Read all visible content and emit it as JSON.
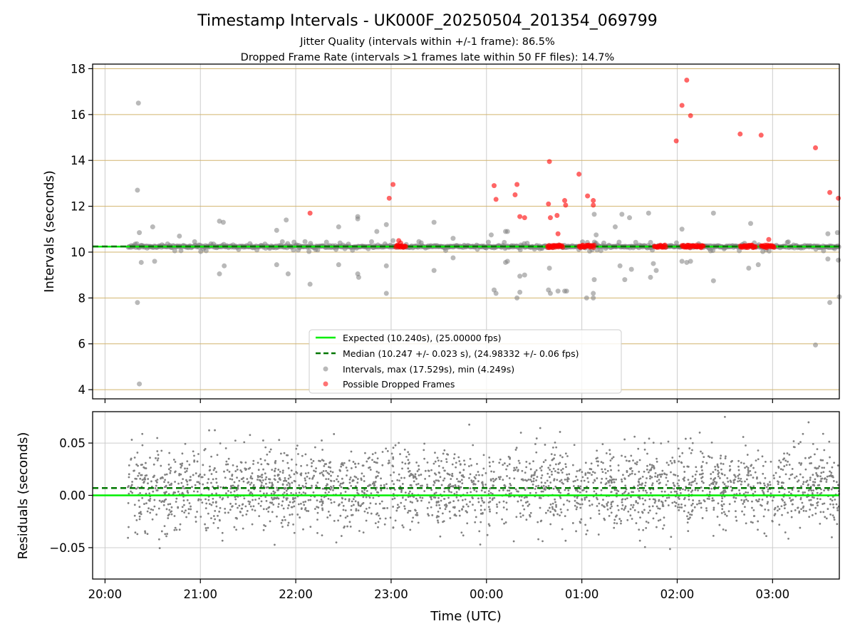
{
  "colors": {
    "expected": "#00ee00",
    "median": "#007700",
    "intervals": "#808080",
    "dropped": "#ff0000",
    "hgrid_top": "#d2b46e",
    "grid": "#cccccc"
  },
  "chart_data": {
    "type": "scatter",
    "title": "Timestamp Intervals - UK000F_20250504_201354_069799",
    "subtitle_lines": [
      "Jitter Quality (intervals within +/-1 frame): 86.5%",
      "Dropped Frame Rate (intervals >1 frames late within 50 FF files): 14.7%"
    ],
    "xlabel": "Time (UTC)",
    "x_ticks": [
      "20:00",
      "21:00",
      "22:00",
      "23:00",
      "00:00",
      "01:00",
      "02:00",
      "03:00"
    ],
    "x_range_hours": [
      19.87,
      27.7
    ],
    "x_tick_hours": [
      20,
      21,
      22,
      23,
      24,
      25,
      26,
      27
    ],
    "top": {
      "ylabel": "Intervals (seconds)",
      "ylim": [
        3.6,
        18.2
      ],
      "y_ticks": [
        "4",
        "6",
        "8",
        "10",
        "12",
        "14",
        "16",
        "18"
      ],
      "y_tick_values": [
        4,
        6,
        8,
        10,
        12,
        14,
        16,
        18
      ],
      "expected": 10.24,
      "median": 10.247,
      "legend": [
        "Expected (10.240s), (25.00000 fps)",
        "Median (10.247 +/- 0.023 s), (24.98332 +/- 0.06 fps)",
        "Intervals, max (17.529s), min (4.249s)",
        "Possible Dropped Frames"
      ],
      "dropped_frames": [
        [
          22.15,
          11.7
        ],
        [
          22.98,
          12.35
        ],
        [
          23.02,
          12.95
        ],
        [
          23.08,
          10.5
        ],
        [
          23.1,
          10.4
        ],
        [
          24.08,
          12.9
        ],
        [
          24.1,
          12.3
        ],
        [
          24.3,
          12.5
        ],
        [
          24.32,
          12.95
        ],
        [
          24.35,
          11.55
        ],
        [
          24.4,
          11.5
        ],
        [
          24.65,
          12.1
        ],
        [
          24.66,
          13.95
        ],
        [
          24.67,
          11.5
        ],
        [
          24.74,
          11.6
        ],
        [
          24.75,
          10.8
        ],
        [
          24.82,
          12.25
        ],
        [
          24.83,
          12.05
        ],
        [
          24.97,
          13.4
        ],
        [
          25.06,
          12.45
        ],
        [
          25.12,
          12.25
        ],
        [
          25.12,
          12.05
        ],
        [
          25.99,
          14.85
        ],
        [
          26.05,
          16.4
        ],
        [
          26.1,
          17.5
        ],
        [
          26.14,
          15.95
        ],
        [
          26.66,
          15.15
        ],
        [
          26.88,
          15.1
        ],
        [
          26.96,
          10.55
        ],
        [
          27.45,
          14.55
        ],
        [
          27.6,
          12.6
        ],
        [
          27.69,
          12.35
        ]
      ],
      "dropped_clusters": [
        [
          23.05,
          23.16
        ],
        [
          24.64,
          24.8
        ],
        [
          24.97,
          25.13
        ],
        [
          25.76,
          25.88
        ],
        [
          26.05,
          26.28
        ],
        [
          26.66,
          26.82
        ],
        [
          26.88,
          27.02
        ]
      ],
      "outlier_intervals": [
        [
          20.35,
          16.5
        ],
        [
          20.34,
          12.7
        ],
        [
          20.36,
          10.85
        ],
        [
          20.34,
          7.8
        ],
        [
          20.36,
          4.25
        ],
        [
          20.38,
          9.55
        ],
        [
          20.5,
          11.1
        ],
        [
          20.52,
          9.6
        ],
        [
          20.78,
          10.7
        ],
        [
          21.2,
          11.35
        ],
        [
          21.24,
          11.3
        ],
        [
          21.2,
          9.05
        ],
        [
          21.25,
          9.4
        ],
        [
          21.8,
          10.95
        ],
        [
          21.8,
          9.45
        ],
        [
          21.9,
          11.4
        ],
        [
          21.92,
          9.05
        ],
        [
          22.15,
          8.6
        ],
        [
          22.45,
          11.1
        ],
        [
          22.45,
          9.45
        ],
        [
          22.65,
          11.45
        ],
        [
          22.65,
          11.55
        ],
        [
          22.65,
          9.05
        ],
        [
          22.66,
          8.9
        ],
        [
          22.85,
          10.9
        ],
        [
          22.95,
          11.2
        ],
        [
          22.95,
          9.4
        ],
        [
          22.95,
          8.2
        ],
        [
          23.02,
          10.5
        ],
        [
          23.45,
          11.3
        ],
        [
          23.45,
          9.2
        ],
        [
          23.65,
          10.6
        ],
        [
          23.65,
          9.75
        ],
        [
          24.05,
          10.75
        ],
        [
          24.08,
          8.35
        ],
        [
          24.1,
          8.2
        ],
        [
          24.2,
          10.9
        ],
        [
          24.22,
          10.9
        ],
        [
          24.2,
          9.55
        ],
        [
          24.22,
          9.6
        ],
        [
          24.32,
          8.0
        ],
        [
          24.35,
          8.25
        ],
        [
          24.35,
          8.95
        ],
        [
          24.4,
          9.0
        ],
        [
          24.65,
          8.35
        ],
        [
          24.67,
          8.2
        ],
        [
          24.66,
          9.3
        ],
        [
          24.75,
          8.3
        ],
        [
          24.82,
          8.3
        ],
        [
          24.84,
          8.3
        ],
        [
          25.05,
          8.0
        ],
        [
          25.12,
          8.0
        ],
        [
          25.12,
          8.2
        ],
        [
          25.13,
          8.8
        ],
        [
          25.13,
          11.65
        ],
        [
          25.15,
          10.75
        ],
        [
          25.35,
          11.1
        ],
        [
          25.4,
          9.4
        ],
        [
          25.42,
          11.65
        ],
        [
          25.45,
          8.8
        ],
        [
          25.5,
          11.5
        ],
        [
          25.52,
          9.25
        ],
        [
          25.7,
          11.7
        ],
        [
          25.72,
          8.9
        ],
        [
          25.75,
          9.5
        ],
        [
          25.78,
          9.2
        ],
        [
          26.05,
          11.0
        ],
        [
          26.05,
          9.6
        ],
        [
          26.1,
          9.55
        ],
        [
          26.14,
          9.6
        ],
        [
          26.38,
          11.7
        ],
        [
          26.38,
          8.75
        ],
        [
          26.75,
          9.3
        ],
        [
          26.77,
          11.25
        ],
        [
          26.85,
          9.45
        ],
        [
          27.45,
          5.95
        ],
        [
          27.58,
          10.8
        ],
        [
          27.58,
          9.7
        ],
        [
          27.6,
          7.8
        ],
        [
          27.68,
          10.85
        ],
        [
          27.69,
          9.65
        ],
        [
          27.7,
          8.05
        ]
      ]
    },
    "bottom": {
      "ylabel": "Residuals (seconds)",
      "ylim": [
        -0.08,
        0.08
      ],
      "y_ticks": [
        "0.05",
        "0.00",
        "−0.05"
      ],
      "y_tick_values": [
        0.05,
        0.0,
        -0.05
      ],
      "expected": 0.0,
      "median": 0.007,
      "residual_sd": 0.019,
      "residual_points": 2600,
      "x_start_hours": 20.24
    }
  }
}
